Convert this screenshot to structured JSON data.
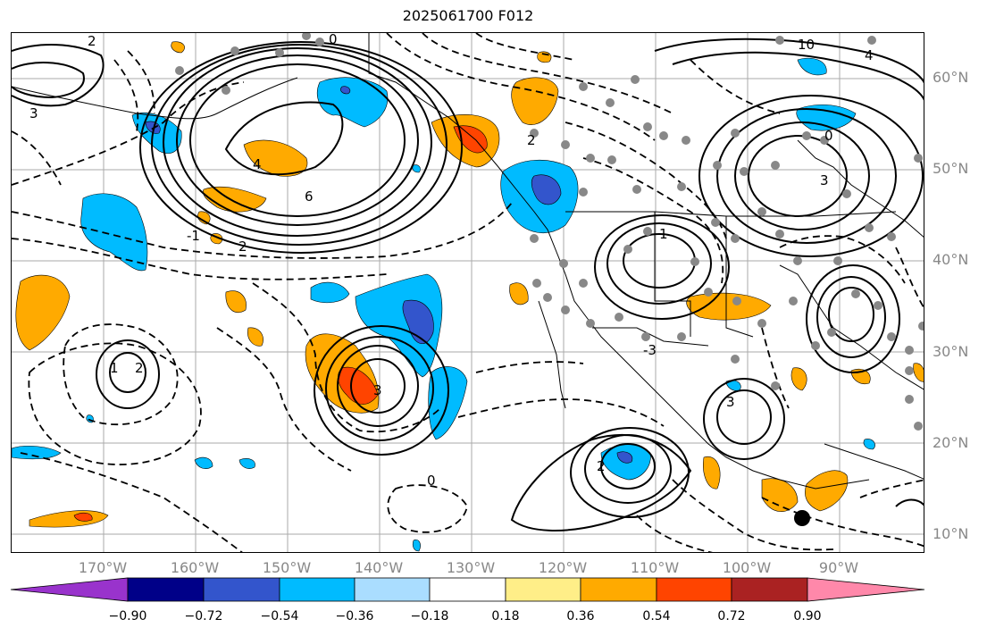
{
  "title": "2025061700 F012",
  "latitude_labels": [
    "60°N",
    "50°N",
    "40°N",
    "30°N",
    "20°N",
    "10°N"
  ],
  "longitude_labels": [
    "170°W",
    "160°W",
    "150°W",
    "140°W",
    "130°W",
    "120°W",
    "110°W",
    "100°W",
    "90°W"
  ],
  "colorbar": {
    "ticks": [
      "−0.90",
      "−0.72",
      "−0.54",
      "−0.36",
      "−0.18",
      "0.18",
      "0.36",
      "0.54",
      "0.72",
      "0.90"
    ],
    "colors": [
      "#9933cc",
      "#000088",
      "#3355cc",
      "#00bbff",
      "#aaddff",
      "#ffffff",
      "#ffee88",
      "#ffaa00",
      "#ff4400",
      "#aa2222",
      "#ff88aa"
    ],
    "extend": "both"
  },
  "contour_labels": [
    "0",
    "2",
    "3",
    "4",
    "6",
    "-1",
    "1",
    "2",
    "3",
    "10",
    "-3",
    "0",
    "3",
    "2",
    "2",
    "2",
    "4",
    "1",
    "0",
    "3"
  ],
  "marker": {
    "type": "filled-circle",
    "color": "#000000"
  }
}
